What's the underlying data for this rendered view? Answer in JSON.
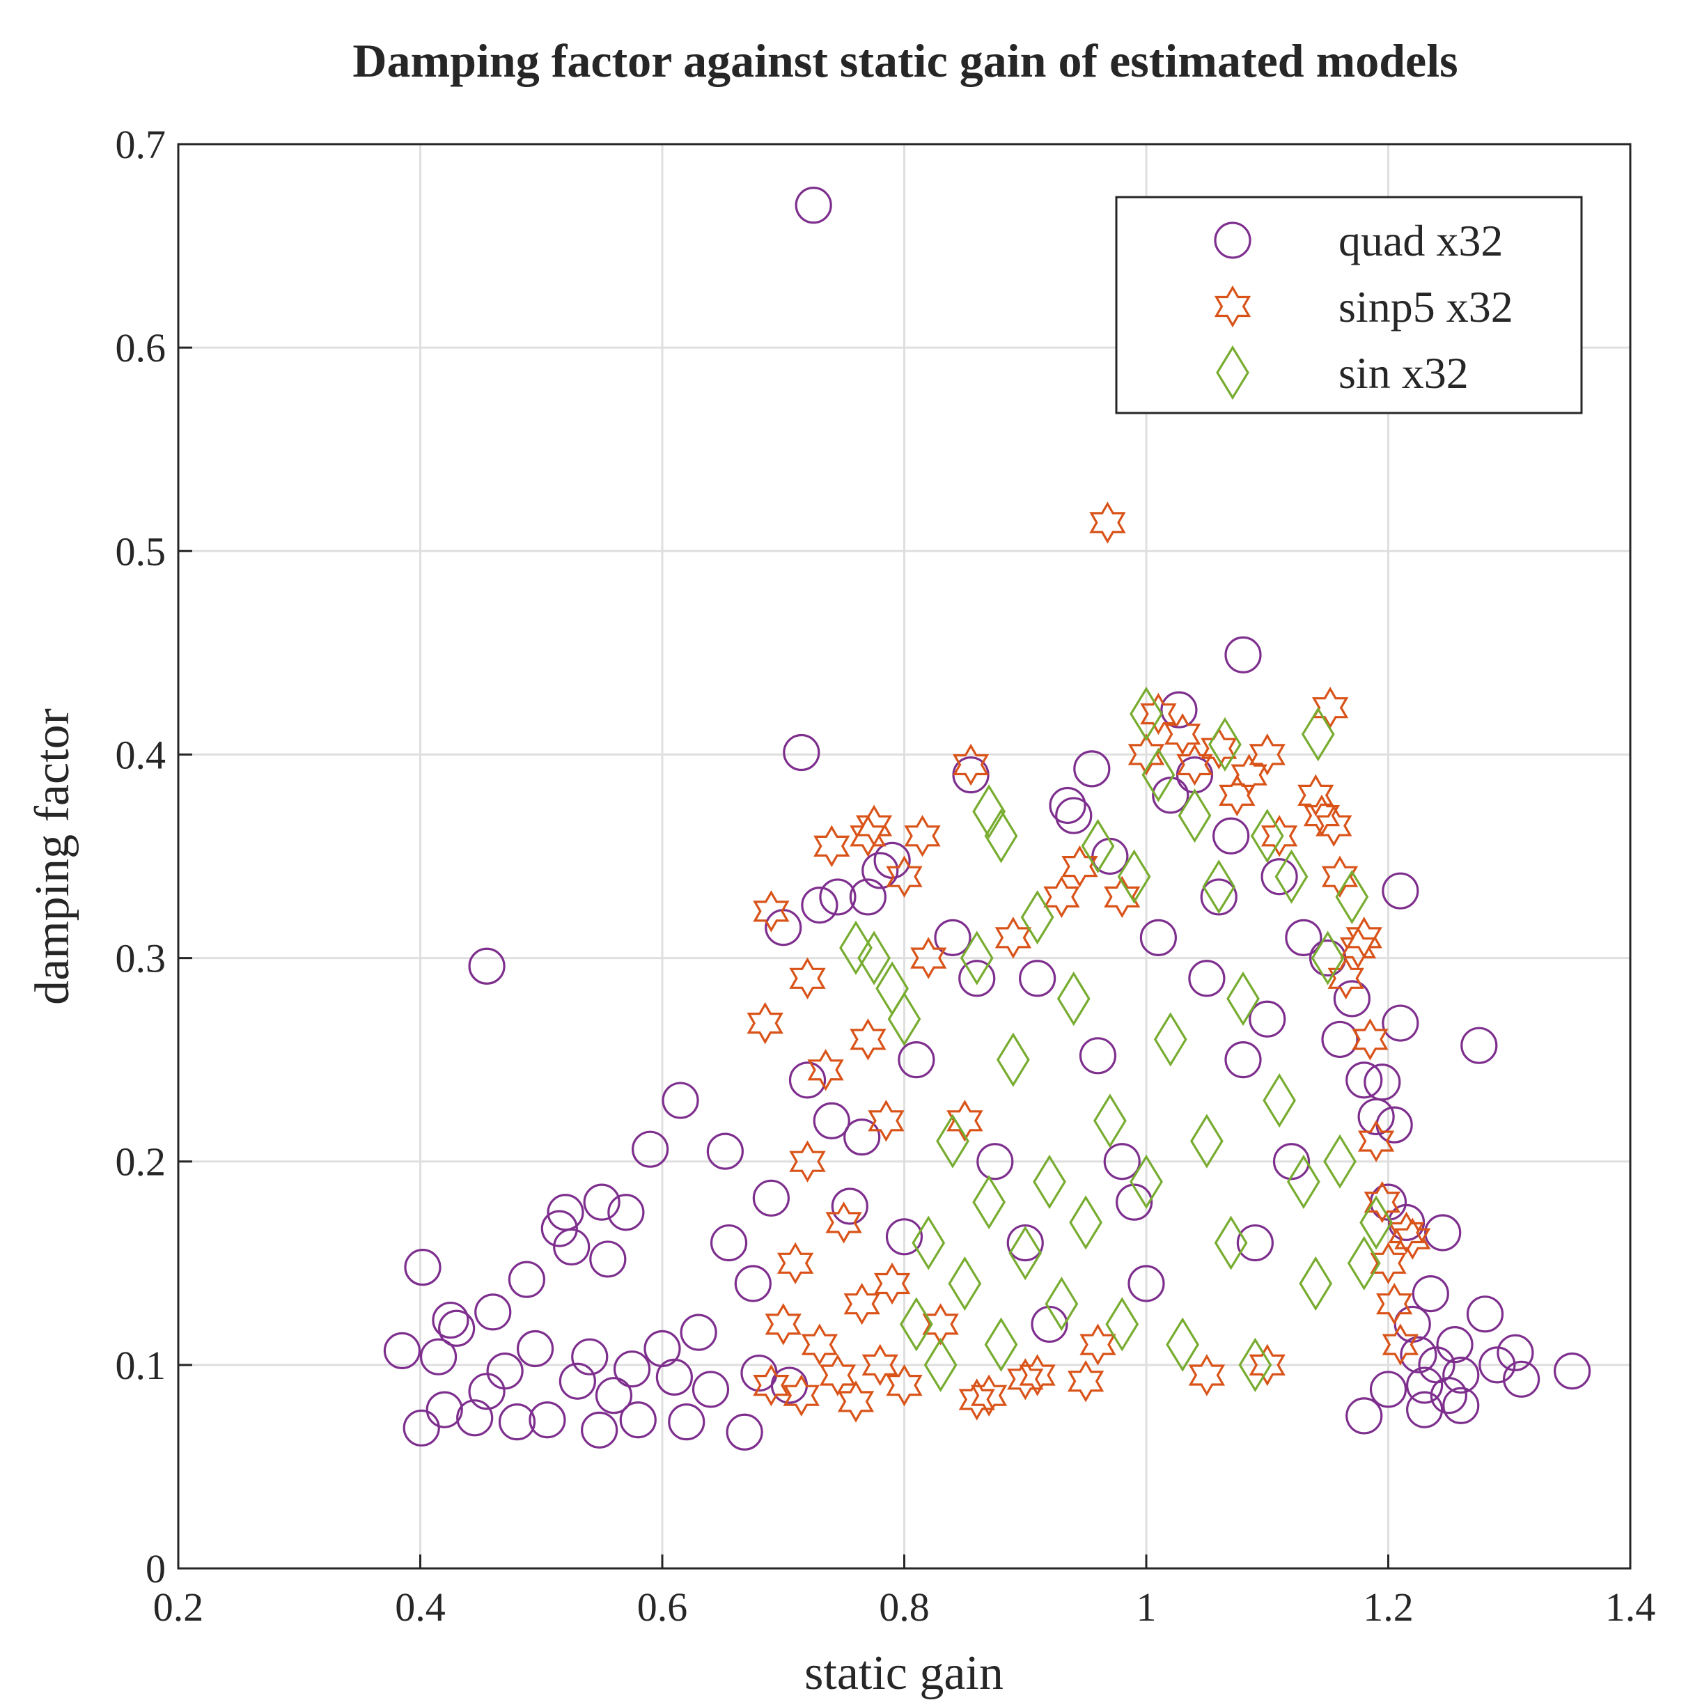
{
  "chart_data": {
    "type": "scatter",
    "title": "Damping factor against static gain of estimated models",
    "xlabel": "static gain",
    "ylabel": "damping factor",
    "xlim": [
      0.2,
      1.4
    ],
    "ylim": [
      0,
      0.7
    ],
    "xticks": [
      0.2,
      0.4,
      0.6,
      0.8,
      1.0,
      1.2,
      1.4
    ],
    "xtick_labels": [
      "0.2",
      "0.4",
      "0.6",
      "0.8",
      "1",
      "1.2",
      "1.4"
    ],
    "yticks": [
      0,
      0.1,
      0.2,
      0.3,
      0.4,
      0.5,
      0.6,
      0.7
    ],
    "ytick_labels": [
      "0",
      "0.1",
      "0.2",
      "0.3",
      "0.4",
      "0.5",
      "0.6",
      "0.7"
    ],
    "grid": true,
    "legend_position": "top-right",
    "series": [
      {
        "name": "quad x32",
        "marker": "circle",
        "color": "#7E2F8E",
        "points": [
          [
            0.725,
            0.67
          ],
          [
            0.455,
            0.296
          ],
          [
            0.715,
            0.401
          ],
          [
            1.08,
            0.449
          ],
          [
            1.027,
            0.422
          ],
          [
            0.385,
            0.107
          ],
          [
            0.402,
            0.148
          ],
          [
            0.401,
            0.069
          ],
          [
            0.425,
            0.122
          ],
          [
            0.43,
            0.118
          ],
          [
            0.415,
            0.104
          ],
          [
            0.42,
            0.078
          ],
          [
            0.445,
            0.074
          ],
          [
            0.455,
            0.087
          ],
          [
            0.46,
            0.126
          ],
          [
            0.47,
            0.097
          ],
          [
            0.48,
            0.072
          ],
          [
            0.488,
            0.142
          ],
          [
            0.495,
            0.108
          ],
          [
            0.505,
            0.073
          ],
          [
            0.515,
            0.167
          ],
          [
            0.52,
            0.175
          ],
          [
            0.525,
            0.158
          ],
          [
            0.53,
            0.092
          ],
          [
            0.54,
            0.104
          ],
          [
            0.548,
            0.068
          ],
          [
            0.55,
            0.18
          ],
          [
            0.555,
            0.152
          ],
          [
            0.56,
            0.085
          ],
          [
            0.57,
            0.175
          ],
          [
            0.575,
            0.098
          ],
          [
            0.58,
            0.073
          ],
          [
            0.59,
            0.206
          ],
          [
            0.6,
            0.108
          ],
          [
            0.61,
            0.094
          ],
          [
            0.615,
            0.23
          ],
          [
            0.62,
            0.072
          ],
          [
            0.63,
            0.116
          ],
          [
            0.64,
            0.088
          ],
          [
            0.652,
            0.205
          ],
          [
            0.655,
            0.16
          ],
          [
            0.668,
            0.067
          ],
          [
            0.675,
            0.14
          ],
          [
            0.68,
            0.096
          ],
          [
            0.69,
            0.182
          ],
          [
            0.7,
            0.315
          ],
          [
            0.705,
            0.09
          ],
          [
            0.72,
            0.24
          ],
          [
            0.73,
            0.326
          ],
          [
            0.74,
            0.22
          ],
          [
            0.745,
            0.33
          ],
          [
            0.755,
            0.178
          ],
          [
            0.765,
            0.212
          ],
          [
            0.77,
            0.33
          ],
          [
            0.78,
            0.343
          ],
          [
            0.79,
            0.348
          ],
          [
            0.8,
            0.163
          ],
          [
            0.81,
            0.25
          ],
          [
            0.84,
            0.31
          ],
          [
            0.855,
            0.39
          ],
          [
            0.86,
            0.29
          ],
          [
            0.875,
            0.2
          ],
          [
            0.9,
            0.16
          ],
          [
            0.91,
            0.29
          ],
          [
            0.92,
            0.12
          ],
          [
            0.935,
            0.375
          ],
          [
            0.94,
            0.37
          ],
          [
            0.955,
            0.393
          ],
          [
            0.96,
            0.252
          ],
          [
            0.97,
            0.35
          ],
          [
            0.98,
            0.2
          ],
          [
            0.99,
            0.18
          ],
          [
            1.0,
            0.14
          ],
          [
            1.01,
            0.31
          ],
          [
            1.02,
            0.38
          ],
          [
            1.04,
            0.39
          ],
          [
            1.05,
            0.29
          ],
          [
            1.06,
            0.33
          ],
          [
            1.07,
            0.36
          ],
          [
            1.08,
            0.25
          ],
          [
            1.09,
            0.16
          ],
          [
            1.1,
            0.27
          ],
          [
            1.11,
            0.34
          ],
          [
            1.12,
            0.2
          ],
          [
            1.13,
            0.31
          ],
          [
            1.15,
            0.3
          ],
          [
            1.16,
            0.26
          ],
          [
            1.17,
            0.28
          ],
          [
            1.18,
            0.24
          ],
          [
            1.19,
            0.222
          ],
          [
            1.195,
            0.239
          ],
          [
            1.2,
            0.18
          ],
          [
            1.205,
            0.218
          ],
          [
            1.21,
            0.333
          ],
          [
            1.21,
            0.268
          ],
          [
            1.215,
            0.17
          ],
          [
            1.22,
            0.12
          ],
          [
            1.225,
            0.105
          ],
          [
            1.23,
            0.09
          ],
          [
            1.235,
            0.135
          ],
          [
            1.24,
            0.1
          ],
          [
            1.245,
            0.165
          ],
          [
            1.25,
            0.085
          ],
          [
            1.255,
            0.11
          ],
          [
            1.26,
            0.08
          ],
          [
            1.275,
            0.257
          ],
          [
            1.29,
            0.1
          ],
          [
            1.305,
            0.106
          ],
          [
            1.31,
            0.093
          ],
          [
            1.352,
            0.097
          ],
          [
            1.18,
            0.075
          ],
          [
            1.2,
            0.088
          ],
          [
            1.23,
            0.078
          ],
          [
            1.26,
            0.095
          ],
          [
            1.28,
            0.125
          ]
        ]
      },
      {
        "name": "sinp5 x32",
        "marker": "hexagram",
        "color": "#D95319",
        "points": [
          [
            0.968,
            0.514
          ],
          [
            1.152,
            0.423
          ],
          [
            0.69,
            0.323
          ],
          [
            0.685,
            0.268
          ],
          [
            0.72,
            0.29
          ],
          [
            0.74,
            0.355
          ],
          [
            0.77,
            0.36
          ],
          [
            0.775,
            0.365
          ],
          [
            0.8,
            0.34
          ],
          [
            0.815,
            0.36
          ],
          [
            0.855,
            0.395
          ],
          [
            0.69,
            0.09
          ],
          [
            0.7,
            0.12
          ],
          [
            0.71,
            0.15
          ],
          [
            0.715,
            0.085
          ],
          [
            0.72,
            0.2
          ],
          [
            0.73,
            0.11
          ],
          [
            0.735,
            0.245
          ],
          [
            0.745,
            0.095
          ],
          [
            0.75,
            0.17
          ],
          [
            0.76,
            0.082
          ],
          [
            0.765,
            0.13
          ],
          [
            0.77,
            0.26
          ],
          [
            0.78,
            0.1
          ],
          [
            0.785,
            0.22
          ],
          [
            0.79,
            0.14
          ],
          [
            0.8,
            0.09
          ],
          [
            0.82,
            0.3
          ],
          [
            0.83,
            0.12
          ],
          [
            0.85,
            0.22
          ],
          [
            0.87,
            0.085
          ],
          [
            0.89,
            0.31
          ],
          [
            0.91,
            0.095
          ],
          [
            0.93,
            0.33
          ],
          [
            0.945,
            0.345
          ],
          [
            0.96,
            0.11
          ],
          [
            0.98,
            0.33
          ],
          [
            1.0,
            0.4
          ],
          [
            1.01,
            0.42
          ],
          [
            1.03,
            0.41
          ],
          [
            1.04,
            0.395
          ],
          [
            1.06,
            0.403
          ],
          [
            1.075,
            0.38
          ],
          [
            1.085,
            0.39
          ],
          [
            1.1,
            0.4
          ],
          [
            1.11,
            0.36
          ],
          [
            1.14,
            0.38
          ],
          [
            1.145,
            0.37
          ],
          [
            1.155,
            0.365
          ],
          [
            1.16,
            0.34
          ],
          [
            1.165,
            0.29
          ],
          [
            1.175,
            0.305
          ],
          [
            1.18,
            0.31
          ],
          [
            1.185,
            0.26
          ],
          [
            1.19,
            0.21
          ],
          [
            1.195,
            0.18
          ],
          [
            1.2,
            0.15
          ],
          [
            1.205,
            0.13
          ],
          [
            1.21,
            0.11
          ],
          [
            1.215,
            0.165
          ],
          [
            1.22,
            0.162
          ],
          [
            1.1,
            0.1
          ],
          [
            1.05,
            0.095
          ],
          [
            0.95,
            0.092
          ],
          [
            0.9,
            0.093
          ],
          [
            0.86,
            0.083
          ]
        ]
      },
      {
        "name": "sin x32",
        "marker": "diamond",
        "color": "#77AC30",
        "points": [
          [
            1.0,
            0.42
          ],
          [
            1.142,
            0.41
          ],
          [
            1.065,
            0.405
          ],
          [
            0.87,
            0.372
          ],
          [
            0.88,
            0.36
          ],
          [
            0.76,
            0.305
          ],
          [
            0.775,
            0.3
          ],
          [
            0.79,
            0.285
          ],
          [
            0.8,
            0.27
          ],
          [
            0.81,
            0.12
          ],
          [
            0.82,
            0.16
          ],
          [
            0.83,
            0.1
          ],
          [
            0.84,
            0.21
          ],
          [
            0.85,
            0.14
          ],
          [
            0.86,
            0.3
          ],
          [
            0.87,
            0.18
          ],
          [
            0.88,
            0.11
          ],
          [
            0.89,
            0.25
          ],
          [
            0.9,
            0.155
          ],
          [
            0.91,
            0.32
          ],
          [
            0.92,
            0.19
          ],
          [
            0.93,
            0.13
          ],
          [
            0.94,
            0.28
          ],
          [
            0.95,
            0.17
          ],
          [
            0.96,
            0.355
          ],
          [
            0.97,
            0.22
          ],
          [
            0.98,
            0.12
          ],
          [
            0.99,
            0.34
          ],
          [
            1.0,
            0.19
          ],
          [
            1.01,
            0.39
          ],
          [
            1.02,
            0.26
          ],
          [
            1.03,
            0.11
          ],
          [
            1.04,
            0.37
          ],
          [
            1.05,
            0.21
          ],
          [
            1.06,
            0.335
          ],
          [
            1.07,
            0.16
          ],
          [
            1.08,
            0.28
          ],
          [
            1.09,
            0.1
          ],
          [
            1.1,
            0.36
          ],
          [
            1.11,
            0.23
          ],
          [
            1.12,
            0.34
          ],
          [
            1.13,
            0.19
          ],
          [
            1.14,
            0.14
          ],
          [
            1.15,
            0.3
          ],
          [
            1.16,
            0.2
          ],
          [
            1.17,
            0.33
          ],
          [
            1.18,
            0.15
          ],
          [
            1.19,
            0.17
          ]
        ]
      }
    ]
  }
}
